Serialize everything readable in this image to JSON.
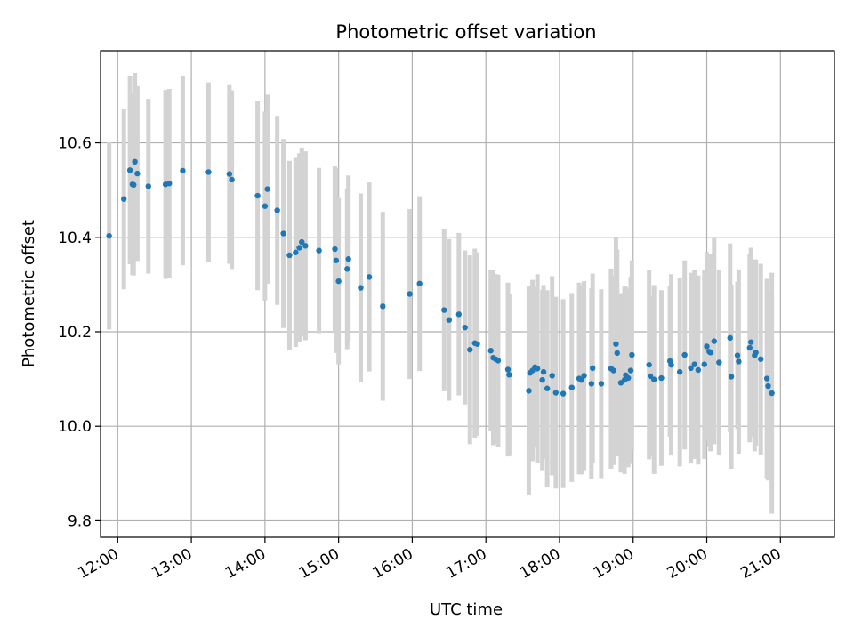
{
  "chart_data": {
    "type": "scatter",
    "title": "Photometric offset variation",
    "xlabel": "UTC time",
    "ylabel": "Photometric offset",
    "x_tick_labels": [
      "12:00",
      "13:00",
      "14:00",
      "15:00",
      "16:00",
      "17:00",
      "18:00",
      "19:00",
      "20:00",
      "21:00"
    ],
    "y_tick_labels": [
      "9.8",
      "10.0",
      "10.2",
      "10.4",
      "10.6"
    ],
    "xlim": [
      "11:46",
      "21:44"
    ],
    "ylim": [
      9.765,
      10.795
    ],
    "grid": true,
    "colors": {
      "points": "#1f77b4",
      "errorbars": "#d3d3d3",
      "grid": "#b0b0b0"
    },
    "series": [
      {
        "x": [
          "11:53",
          "12:05",
          "12:10",
          "12:12",
          "12:13",
          "12:14",
          "12:16",
          "12:25",
          "12:39",
          "12:42",
          "12:53",
          "13:14",
          "13:31",
          "13:33",
          "13:54",
          "14:00",
          "14:02",
          "14:10",
          "14:15",
          "14:20",
          "14:25",
          "14:28",
          "14:30",
          "14:33",
          "14:44",
          "14:57",
          "14:58",
          "15:00",
          "15:07",
          "15:08",
          "15:18",
          "15:25",
          "15:36",
          "15:58",
          "16:06",
          "16:26",
          "16:30",
          "16:38",
          "16:43",
          "16:47",
          "16:51",
          "16:53",
          "17:04",
          "17:06",
          "17:08",
          "17:10",
          "17:18",
          "17:19",
          "17:35",
          "17:36",
          "17:38",
          "17:40",
          "17:42",
          "17:46",
          "17:47",
          "17:50",
          "17:54",
          "17:57",
          "18:03",
          "18:10",
          "18:16",
          "18:18",
          "18:20",
          "18:26",
          "18:27",
          "18:34",
          "18:42",
          "18:44",
          "18:46",
          "18:47",
          "18:50",
          "18:53",
          "18:54",
          "18:56",
          "18:58",
          "18:59",
          "19:13",
          "19:14",
          "19:17",
          "19:23",
          "19:30",
          "19:31",
          "19:38",
          "19:42",
          "19:47",
          "19:50",
          "19:53",
          "19:58",
          "20:00",
          "20:02",
          "20:03",
          "20:06",
          "20:10",
          "20:19",
          "20:20",
          "20:25",
          "20:26",
          "20:35",
          "20:36",
          "20:39",
          "20:40",
          "20:44",
          "20:49",
          "20:50",
          "20:53"
        ],
        "y": [
          10.403,
          10.481,
          10.542,
          10.512,
          10.511,
          10.56,
          10.535,
          10.508,
          10.512,
          10.514,
          10.541,
          10.538,
          10.534,
          10.522,
          10.488,
          10.466,
          10.502,
          10.457,
          10.408,
          10.362,
          10.368,
          10.378,
          10.39,
          10.382,
          10.372,
          10.375,
          10.351,
          10.307,
          10.333,
          10.354,
          10.293,
          10.316,
          10.254,
          10.28,
          10.302,
          10.246,
          10.225,
          10.237,
          10.209,
          10.162,
          10.176,
          10.174,
          10.16,
          10.145,
          10.142,
          10.139,
          10.12,
          10.109,
          10.075,
          10.113,
          10.118,
          10.125,
          10.122,
          10.098,
          10.115,
          10.08,
          10.107,
          10.071,
          10.069,
          10.082,
          10.101,
          10.098,
          10.107,
          10.09,
          10.123,
          10.09,
          10.122,
          10.118,
          10.174,
          10.155,
          10.092,
          10.098,
          10.108,
          10.102,
          10.118,
          10.151,
          10.13,
          10.106,
          10.099,
          10.102,
          10.138,
          10.13,
          10.115,
          10.151,
          10.123,
          10.131,
          10.119,
          10.131,
          10.169,
          10.158,
          10.156,
          10.18,
          10.135,
          10.187,
          10.105,
          10.15,
          10.137,
          10.166,
          10.178,
          10.15,
          10.156,
          10.142,
          10.101,
          10.085,
          10.07
        ],
        "yerr": [
          0.198,
          0.191,
          0.199,
          0.192,
          0.192,
          0.188,
          0.185,
          0.185,
          0.2,
          0.2,
          0.2,
          0.19,
          0.19,
          0.189,
          0.2,
          0.2,
          0.2,
          0.2,
          0.2,
          0.2,
          0.2,
          0.2,
          0.2,
          0.2,
          0.175,
          0.175,
          0.196,
          0.176,
          0.17,
          0.177,
          0.2,
          0.2,
          0.2,
          0.18,
          0.185,
          0.172,
          0.171,
          0.172,
          0.163,
          0.2,
          0.2,
          0.194,
          0.17,
          0.185,
          0.18,
          0.182,
          0.184,
          0.172,
          0.221,
          0.184,
          0.192,
          0.17,
          0.2,
          0.191,
          0.184,
          0.208,
          0.211,
          0.203,
          0.2,
          0.2,
          0.203,
          0.2,
          0.2,
          0.202,
          0.2,
          0.2,
          0.212,
          0.2,
          0.225,
          0.219,
          0.19,
          0.199,
          0.187,
          0.189,
          0.198,
          0.2,
          0.2,
          0.17,
          0.2,
          0.186,
          0.16,
          0.192,
          0.2,
          0.2,
          0.202,
          0.2,
          0.2,
          0.2,
          0.2,
          0.2,
          0.209,
          0.218,
          0.197,
          0.2,
          0.195,
          0.156,
          0.195,
          0.2,
          0.2,
          0.203,
          0.197,
          0.202,
          0.211,
          0.2,
          0.255
        ]
      }
    ]
  }
}
